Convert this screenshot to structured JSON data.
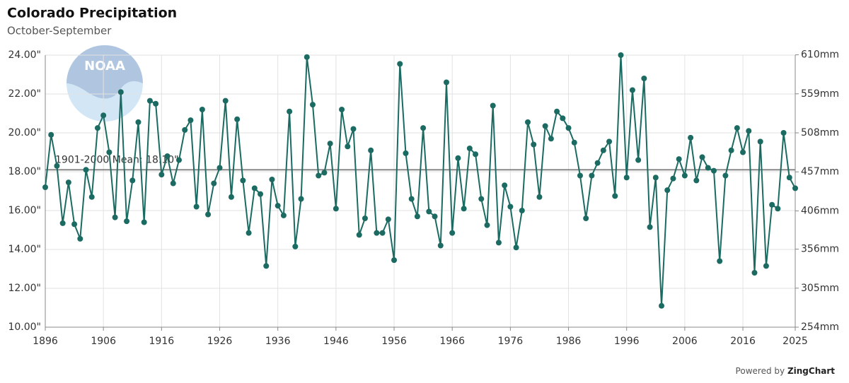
{
  "chart_data": {
    "type": "line",
    "title": "Colorado Precipitation",
    "subtitle": "October-September",
    "logo_text": "NOAA",
    "credit": {
      "prefix": "Powered by",
      "brand": "ZingChart"
    },
    "x": [
      1896,
      1897,
      1898,
      1899,
      1900,
      1901,
      1902,
      1903,
      1904,
      1905,
      1906,
      1907,
      1908,
      1909,
      1910,
      1911,
      1912,
      1913,
      1914,
      1915,
      1916,
      1917,
      1918,
      1919,
      1920,
      1921,
      1922,
      1923,
      1924,
      1925,
      1926,
      1927,
      1928,
      1929,
      1930,
      1931,
      1932,
      1933,
      1934,
      1935,
      1936,
      1937,
      1938,
      1939,
      1940,
      1941,
      1942,
      1943,
      1944,
      1945,
      1946,
      1947,
      1948,
      1949,
      1950,
      1951,
      1952,
      1953,
      1954,
      1955,
      1956,
      1957,
      1958,
      1959,
      1960,
      1961,
      1962,
      1963,
      1964,
      1965,
      1966,
      1967,
      1968,
      1969,
      1970,
      1971,
      1972,
      1973,
      1974,
      1975,
      1976,
      1977,
      1978,
      1979,
      1980,
      1981,
      1982,
      1983,
      1984,
      1985,
      1986,
      1987,
      1988,
      1989,
      1990,
      1991,
      1992,
      1993,
      1994,
      1995,
      1996,
      1997,
      1998,
      1999,
      2000,
      2001,
      2002,
      2003,
      2004,
      2005,
      2006,
      2007,
      2008,
      2009,
      2010,
      2011,
      2012,
      2013,
      2014,
      2015,
      2016,
      2017,
      2018,
      2019,
      2020,
      2021,
      2022,
      2023,
      2024,
      2025
    ],
    "series": [
      {
        "color": "#1b6b62",
        "values": [
          17.2,
          19.9,
          18.3,
          15.35,
          17.45,
          15.3,
          14.55,
          18.1,
          16.7,
          20.25,
          20.9,
          19.0,
          15.65,
          22.1,
          15.45,
          17.55,
          20.55,
          15.4,
          21.65,
          21.5,
          17.85,
          18.8,
          17.4,
          18.6,
          20.15,
          20.65,
          16.2,
          21.2,
          15.8,
          17.4,
          18.2,
          21.65,
          16.7,
          20.7,
          17.55,
          14.85,
          17.15,
          16.85,
          13.15,
          17.6,
          16.25,
          15.75,
          21.1,
          14.15,
          16.6,
          23.9,
          21.45,
          17.8,
          17.95,
          19.45,
          16.1,
          21.2,
          19.3,
          20.2,
          14.75,
          15.6,
          19.1,
          14.85,
          14.85,
          15.55,
          13.45,
          23.55,
          18.95,
          16.6,
          15.7,
          20.25,
          15.95,
          15.7,
          14.2,
          22.6,
          14.85,
          18.7,
          16.1,
          19.2,
          18.9,
          16.6,
          15.25,
          21.4,
          14.35,
          17.3,
          16.2,
          14.1,
          16.0,
          20.55,
          19.4,
          16.7,
          20.35,
          19.7,
          21.1,
          20.75,
          20.25,
          19.5,
          17.8,
          15.6,
          17.8,
          18.45,
          19.1,
          19.55,
          16.75,
          24.0,
          17.7,
          22.2,
          18.6,
          22.8,
          15.15,
          17.7,
          11.1,
          17.05,
          17.65,
          18.65,
          17.8,
          19.75,
          17.55,
          18.75,
          18.2,
          18.05,
          13.4,
          17.8,
          19.1,
          20.25,
          19.0,
          20.1,
          12.8,
          19.55,
          13.15,
          16.3,
          16.1,
          20.0,
          17.7,
          17.15
        ]
      }
    ],
    "mean": {
      "value": 18.1,
      "label": "1901-2000 Mean: 18.10\""
    },
    "xlim": [
      1896,
      2025
    ],
    "xticks": [
      1896,
      1906,
      1916,
      1926,
      1936,
      1946,
      1956,
      1966,
      1976,
      1986,
      1996,
      2006,
      2016,
      2025
    ],
    "ylim": [
      10,
      24
    ],
    "yticks": [
      {
        "value": 10,
        "label": "10.00\""
      },
      {
        "value": 12,
        "label": "12.00\""
      },
      {
        "value": 14,
        "label": "14.00\""
      },
      {
        "value": 16,
        "label": "16.00\""
      },
      {
        "value": 18,
        "label": "18.00\""
      },
      {
        "value": 20,
        "label": "20.00\""
      },
      {
        "value": 22,
        "label": "22.00\""
      },
      {
        "value": 24,
        "label": "24.00\""
      }
    ],
    "y2lim": [
      254,
      609.6
    ],
    "y2ticks": [
      {
        "value": 254,
        "label": "254mm"
      },
      {
        "value": 305,
        "label": "305mm"
      },
      {
        "value": 356,
        "label": "356mm"
      },
      {
        "value": 406,
        "label": "406mm"
      },
      {
        "value": 457,
        "label": "457mm"
      },
      {
        "value": 508,
        "label": "508mm"
      },
      {
        "value": 559,
        "label": "559mm"
      },
      {
        "value": 610,
        "label": "610mm"
      }
    ],
    "grid": true
  }
}
